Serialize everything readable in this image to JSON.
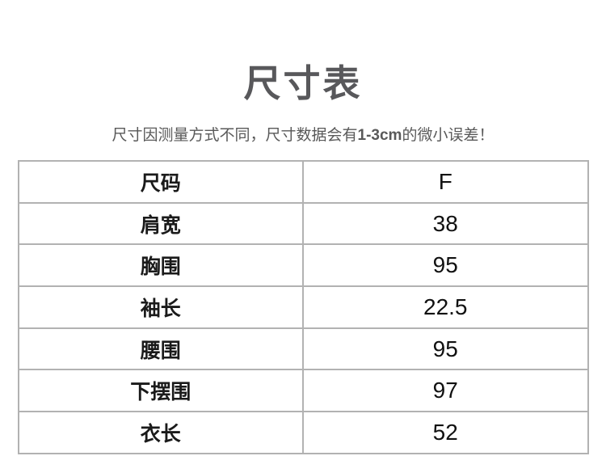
{
  "title": "尺寸表",
  "subtitle": {
    "prefix": "尺寸因测量方式不同，尺寸数据会有",
    "highlight": "1-3cm",
    "suffix": "的微小误差！"
  },
  "colors": {
    "title_text": "#58585b",
    "subtitle_text": "#595959",
    "table_text": "#1a1a1a",
    "table_border": "#b2b2b2",
    "background": "#ffffff"
  },
  "size_table": {
    "rows": [
      {
        "label": "尺码",
        "value": "F"
      },
      {
        "label": "肩宽",
        "value": "38"
      },
      {
        "label": "胸围",
        "value": "95"
      },
      {
        "label": "袖长",
        "value": "22.5"
      },
      {
        "label": "腰围",
        "value": "95"
      },
      {
        "label": "下摆围",
        "value": "97"
      },
      {
        "label": "衣长",
        "value": "52"
      }
    ]
  }
}
